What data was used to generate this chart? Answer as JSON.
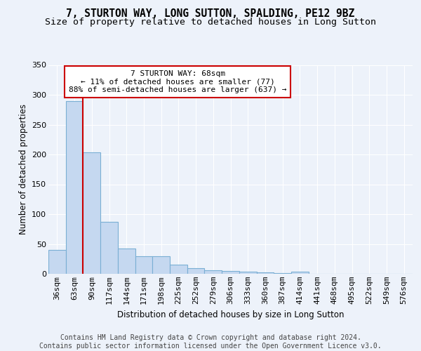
{
  "title": "7, STURTON WAY, LONG SUTTON, SPALDING, PE12 9BZ",
  "subtitle": "Size of property relative to detached houses in Long Sutton",
  "xlabel": "Distribution of detached houses by size in Long Sutton",
  "ylabel": "Number of detached properties",
  "categories": [
    "36sqm",
    "63sqm",
    "90sqm",
    "117sqm",
    "144sqm",
    "171sqm",
    "198sqm",
    "225sqm",
    "252sqm",
    "279sqm",
    "306sqm",
    "333sqm",
    "360sqm",
    "387sqm",
    "414sqm",
    "441sqm",
    "468sqm",
    "495sqm",
    "522sqm",
    "549sqm",
    "576sqm"
  ],
  "values": [
    40,
    290,
    204,
    87,
    42,
    30,
    30,
    15,
    9,
    6,
    5,
    3,
    2,
    1,
    3,
    0,
    0,
    0,
    0,
    0,
    0
  ],
  "bar_color": "#c5d8f0",
  "bar_edge_color": "#7aafd4",
  "vline_x": 1.5,
  "vline_color": "#cc0000",
  "annotation_text": "7 STURTON WAY: 68sqm\n← 11% of detached houses are smaller (77)\n88% of semi-detached houses are larger (637) →",
  "annotation_box_facecolor": "#ffffff",
  "annotation_box_edgecolor": "#cc0000",
  "footer_text": "Contains HM Land Registry data © Crown copyright and database right 2024.\nContains public sector information licensed under the Open Government Licence v3.0.",
  "ylim": [
    0,
    350
  ],
  "yticks": [
    0,
    50,
    100,
    150,
    200,
    250,
    300,
    350
  ],
  "background_color": "#edf2fa",
  "grid_color": "#ffffff",
  "title_fontsize": 10.5,
  "subtitle_fontsize": 9.5,
  "xlabel_fontsize": 8.5,
  "ylabel_fontsize": 8.5,
  "tick_fontsize": 8,
  "footer_fontsize": 7,
  "ann_fontsize": 8
}
